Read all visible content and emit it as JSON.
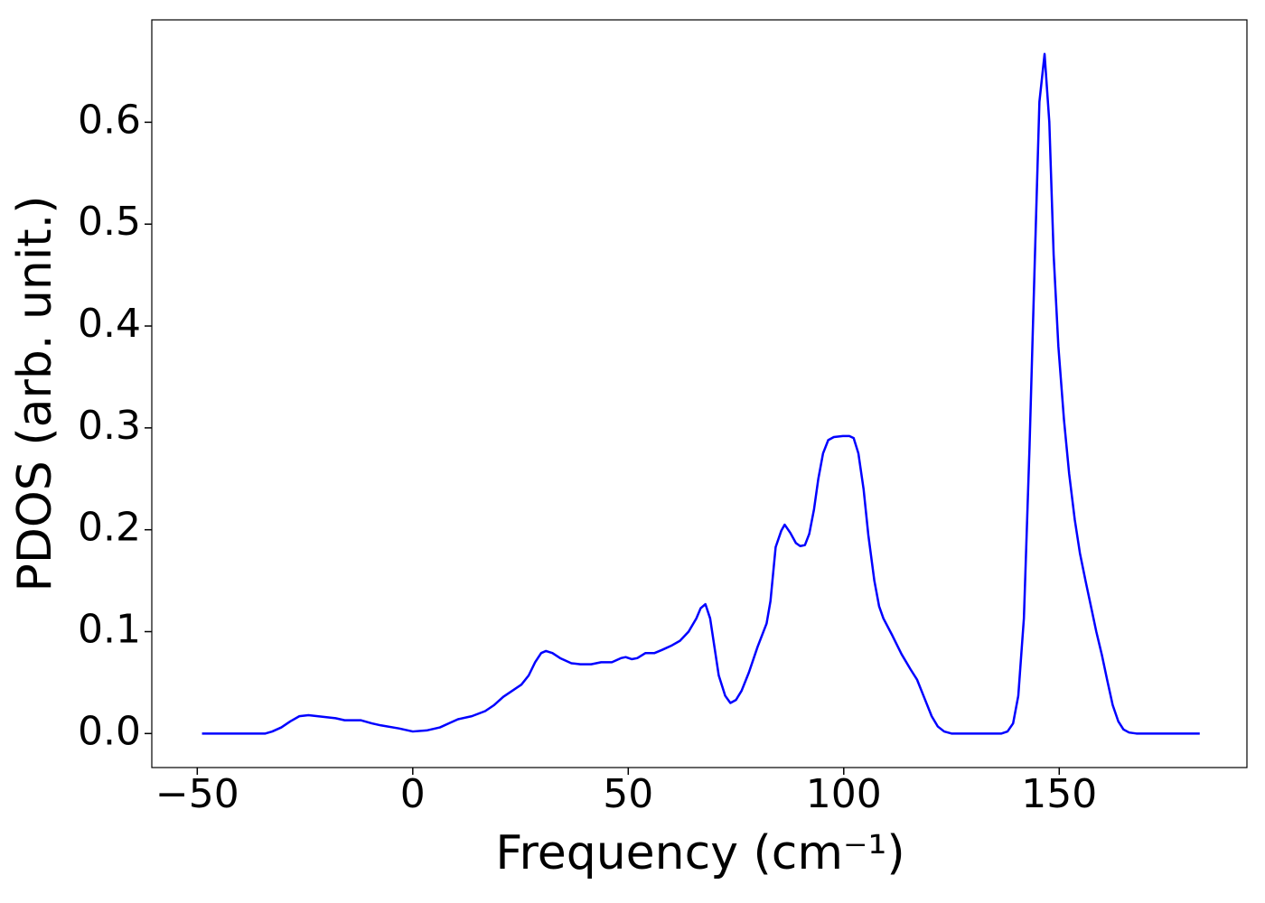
{
  "chart_data": {
    "type": "line",
    "xlabel": "Frequency (cm⁻¹)",
    "ylabel": "PDOS (arb. unit.)",
    "x": [
      -48.9,
      -34.2,
      -32.6,
      -30.5,
      -28.4,
      -26.3,
      -24.2,
      -20.0,
      -17.9,
      -15.8,
      -12.0,
      -9.5,
      -7.4,
      -3.2,
      0.0,
      3.2,
      6.3,
      8.4,
      10.5,
      13.7,
      16.8,
      18.9,
      21.0,
      23.1,
      25.2,
      26.9,
      28.4,
      29.8,
      30.9,
      32.4,
      34.2,
      36.8,
      38.9,
      41.4,
      43.7,
      46.2,
      48.3,
      49.4,
      50.8,
      52.1,
      54.0,
      56.1,
      57.8,
      59.9,
      62.0,
      64.0,
      65.8,
      66.8,
      67.9,
      69.0,
      70.0,
      71.0,
      72.5,
      73.7,
      75.0,
      76.3,
      78.0,
      80.0,
      82.1,
      83.0,
      84.2,
      85.5,
      86.3,
      87.6,
      88.9,
      89.9,
      91.0,
      92.0,
      93.1,
      94.1,
      95.2,
      96.4,
      97.7,
      99.8,
      101.3,
      102.3,
      103.4,
      104.6,
      105.7,
      107.1,
      108.2,
      109.2,
      111.3,
      113.4,
      115.5,
      117.0,
      118.7,
      120.4,
      121.8,
      123.3,
      125.0,
      136.6,
      138.0,
      139.3,
      140.5,
      141.8,
      143.1,
      144.3,
      145.4,
      146.6,
      147.7,
      148.7,
      149.8,
      151.1,
      152.3,
      153.6,
      154.8,
      156.1,
      157.4,
      158.6,
      159.9,
      161.1,
      162.4,
      163.7,
      164.9,
      166.2,
      167.9,
      182.6
    ],
    "series": [
      {
        "color": "#0000ff",
        "values": [
          0,
          0,
          0.002,
          0.006,
          0.012,
          0.017,
          0.018,
          0.016,
          0.015,
          0.013,
          0.013,
          0.01,
          0.008,
          0.005,
          0.002,
          0.003,
          0.006,
          0.01,
          0.014,
          0.017,
          0.022,
          0.028,
          0.036,
          0.042,
          0.048,
          0.057,
          0.07,
          0.079,
          0.081,
          0.079,
          0.074,
          0.069,
          0.068,
          0.068,
          0.07,
          0.07,
          0.074,
          0.075,
          0.073,
          0.074,
          0.079,
          0.079,
          0.082,
          0.086,
          0.091,
          0.1,
          0.113,
          0.123,
          0.127,
          0.113,
          0.085,
          0.057,
          0.037,
          0.03,
          0.033,
          0.042,
          0.06,
          0.085,
          0.108,
          0.13,
          0.183,
          0.199,
          0.205,
          0.197,
          0.187,
          0.184,
          0.185,
          0.196,
          0.22,
          0.25,
          0.275,
          0.288,
          0.291,
          0.292,
          0.292,
          0.29,
          0.275,
          0.24,
          0.195,
          0.15,
          0.125,
          0.113,
          0.096,
          0.078,
          0.063,
          0.053,
          0.035,
          0.017,
          0.007,
          0.002,
          0,
          0,
          0.002,
          0.01,
          0.037,
          0.113,
          0.28,
          0.46,
          0.62,
          0.667,
          0.6,
          0.47,
          0.38,
          0.308,
          0.255,
          0.21,
          0.177,
          0.15,
          0.124,
          0.1,
          0.077,
          0.053,
          0.028,
          0.012,
          0.004,
          0.001,
          0,
          0
        ]
      }
    ],
    "xlim": [
      -60.55,
      193.55
    ],
    "ylim": [
      -0.0334,
      0.7005
    ],
    "xticks": [
      {
        "value": -50,
        "label": "−50"
      },
      0,
      50,
      100,
      150
    ],
    "yticks": [
      {
        "value": 0,
        "label": "0.0"
      },
      {
        "value": 0.1,
        "label": "0.1"
      },
      {
        "value": 0.2,
        "label": "0.2"
      },
      {
        "value": 0.3,
        "label": "0.3"
      },
      {
        "value": 0.4,
        "label": "0.4"
      },
      {
        "value": 0.5,
        "label": "0.5"
      },
      {
        "value": 0.6,
        "label": "0.6"
      }
    ],
    "grid": false
  }
}
